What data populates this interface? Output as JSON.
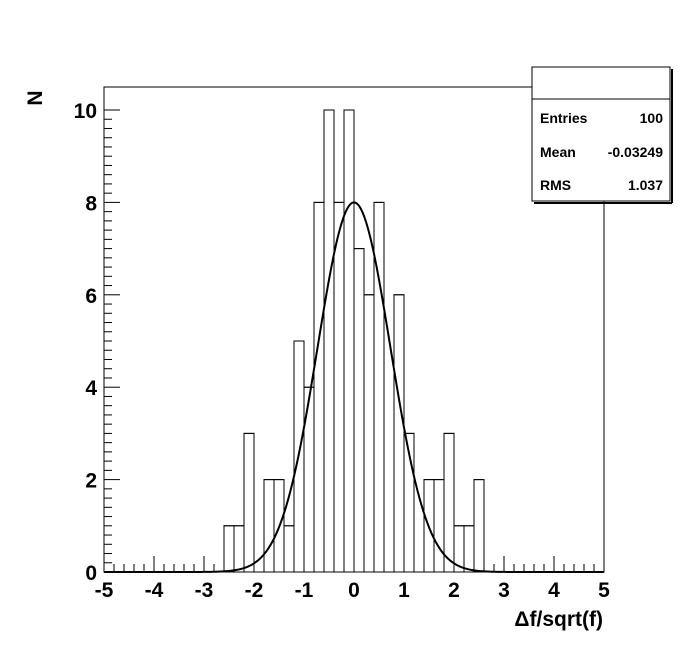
{
  "chart_data": {
    "type": "bar",
    "subtype": "histogram-with-fit",
    "xlabel": "Δf/sqrt(f)",
    "ylabel": "N",
    "xlim": [
      -5,
      5
    ],
    "ylim": [
      0,
      10.5
    ],
    "x_tick_labels": [
      "-5",
      "-4",
      "-3",
      "-2",
      "-1",
      "0",
      "1",
      "2",
      "3",
      "4",
      "5"
    ],
    "y_tick_labels": [
      "0",
      "2",
      "4",
      "6",
      "8",
      "10"
    ],
    "bin_width": 0.2,
    "bin_edges_start": -5,
    "values": [
      0,
      0,
      0,
      0,
      0,
      0,
      0,
      0,
      0,
      0,
      0,
      0,
      1,
      1,
      3,
      0,
      2,
      2,
      1,
      5,
      4,
      8,
      10,
      8,
      10,
      7,
      6,
      8,
      0,
      6,
      3,
      0,
      2,
      2,
      3,
      1,
      1,
      2,
      0,
      0,
      0,
      0,
      0,
      0,
      0,
      0,
      0,
      0,
      0,
      0
    ],
    "fit": {
      "type": "gaussian",
      "constant": 8,
      "mean": 0,
      "sigma": 0.73
    },
    "stats": {
      "entries_label": "Entries",
      "entries_value": "100",
      "mean_label": "Mean",
      "mean_value": "-0.03249",
      "rms_label": "RMS",
      "rms_value": "1.037"
    }
  }
}
